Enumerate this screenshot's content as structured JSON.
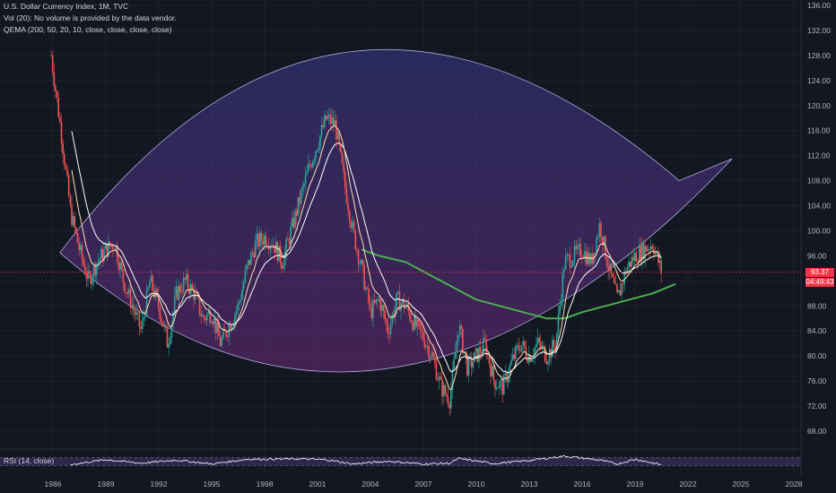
{
  "legend": {
    "title": "U.S. Dollar Currency Index, 1M, TVC",
    "volume": "Vol (20): No volume is provided by the data vendor.",
    "qema": "QEMA (200, 50, 20, 10, close, close, close, close)",
    "rsi": "RSI (14, close)"
  },
  "price_tag": {
    "last": "93.37",
    "countdown": "04:49:43"
  },
  "colors": {
    "background": "#131722",
    "up_candle": "#26a69a",
    "down_candle": "#ef5350",
    "ema_200": "#4caf50",
    "ema_fast": "#ffffff",
    "ema_mid": "#ffe0b2",
    "arc_fill": "#5a2d82",
    "last_price_line": "#f23645",
    "rsi_line": "#ffffff",
    "rsi_band": "#7e57c2"
  },
  "chart_data": {
    "type": "candlestick",
    "symbol": "U.S. Dollar Currency Index",
    "interval": "1M",
    "source": "TVC",
    "x_ticks": [
      "1986",
      "1989",
      "1992",
      "1995",
      "1998",
      "2001",
      "2004",
      "2007",
      "2010",
      "2013",
      "2016",
      "2019",
      "2022",
      "2025",
      "2028"
    ],
    "y_ticks": [
      "136.00",
      "132.00",
      "128.00",
      "124.00",
      "120.00",
      "116.00",
      "112.00",
      "108.00",
      "104.00",
      "100.00",
      "96.00",
      "92.00",
      "88.00",
      "84.00",
      "80.00",
      "76.00",
      "72.00",
      "68.00"
    ],
    "ylim": [
      65,
      137
    ],
    "last_price": 93.37,
    "close_series": [
      [
        1985.9,
        128
      ],
      [
        1986.5,
        115
      ],
      [
        1987.0,
        103
      ],
      [
        1987.5,
        97
      ],
      [
        1988.0,
        92
      ],
      [
        1988.5,
        95
      ],
      [
        1989.0,
        97
      ],
      [
        1989.5,
        98
      ],
      [
        1990.0,
        92
      ],
      [
        1990.5,
        88
      ],
      [
        1991.0,
        84
      ],
      [
        1991.5,
        92
      ],
      [
        1992.0,
        88
      ],
      [
        1992.5,
        82
      ],
      [
        1993.0,
        90
      ],
      [
        1993.5,
        92
      ],
      [
        1994.0,
        90
      ],
      [
        1994.5,
        86
      ],
      [
        1995.0,
        87
      ],
      [
        1995.5,
        82
      ],
      [
        1996.0,
        85
      ],
      [
        1996.5,
        88
      ],
      [
        1997.0,
        94
      ],
      [
        1997.5,
        98
      ],
      [
        1998.0,
        99
      ],
      [
        1998.5,
        98
      ],
      [
        1999.0,
        95
      ],
      [
        1999.5,
        100
      ],
      [
        2000.0,
        105
      ],
      [
        2000.5,
        110
      ],
      [
        2001.0,
        114
      ],
      [
        2001.5,
        118
      ],
      [
        2002.0,
        117
      ],
      [
        2002.5,
        108
      ],
      [
        2003.0,
        100
      ],
      [
        2003.5,
        94
      ],
      [
        2004.0,
        87
      ],
      [
        2004.5,
        89
      ],
      [
        2005.0,
        84
      ],
      [
        2005.5,
        89
      ],
      [
        2006.0,
        88
      ],
      [
        2006.5,
        85
      ],
      [
        2007.0,
        83
      ],
      [
        2007.5,
        80
      ],
      [
        2008.0,
        75
      ],
      [
        2008.5,
        73
      ],
      [
        2009.0,
        85
      ],
      [
        2009.5,
        78
      ],
      [
        2010.0,
        80
      ],
      [
        2010.5,
        82
      ],
      [
        2011.0,
        76
      ],
      [
        2011.5,
        75
      ],
      [
        2012.0,
        79
      ],
      [
        2012.5,
        82
      ],
      [
        2013.0,
        80
      ],
      [
        2013.5,
        82
      ],
      [
        2014.0,
        80
      ],
      [
        2014.5,
        82
      ],
      [
        2015.0,
        95
      ],
      [
        2015.5,
        96
      ],
      [
        2016.0,
        97
      ],
      [
        2016.5,
        95
      ],
      [
        2017.0,
        101
      ],
      [
        2017.5,
        94
      ],
      [
        2018.0,
        89
      ],
      [
        2018.5,
        94
      ],
      [
        2019.0,
        96
      ],
      [
        2019.5,
        97
      ],
      [
        2020.0,
        98
      ],
      [
        2020.5,
        93.37
      ]
    ],
    "ema_200": [
      [
        2003.5,
        97
      ],
      [
        2004.5,
        96
      ],
      [
        2006.0,
        95
      ],
      [
        2008.0,
        92
      ],
      [
        2010.0,
        89
      ],
      [
        2012.0,
        87.5
      ],
      [
        2014.0,
        86
      ],
      [
        2015.0,
        86
      ],
      [
        2016.0,
        87
      ],
      [
        2018.0,
        88.5
      ],
      [
        2020.0,
        90
      ],
      [
        2021.3,
        91.5
      ]
    ],
    "rsi": [
      [
        1987.0,
        35
      ],
      [
        1989.0,
        60
      ],
      [
        1991.0,
        42
      ],
      [
        1993.0,
        58
      ],
      [
        1995.0,
        38
      ],
      [
        1997.0,
        62
      ],
      [
        2000.0,
        64
      ],
      [
        2001.5,
        60
      ],
      [
        2003.0,
        38
      ],
      [
        2005.0,
        52
      ],
      [
        2007.0,
        38
      ],
      [
        2008.5,
        42
      ],
      [
        2009.0,
        66
      ],
      [
        2011.0,
        40
      ],
      [
        2013.0,
        56
      ],
      [
        2015.0,
        78
      ],
      [
        2017.0,
        58
      ],
      [
        2018.0,
        38
      ],
      [
        2019.0,
        62
      ],
      [
        2020.5,
        34
      ]
    ]
  }
}
